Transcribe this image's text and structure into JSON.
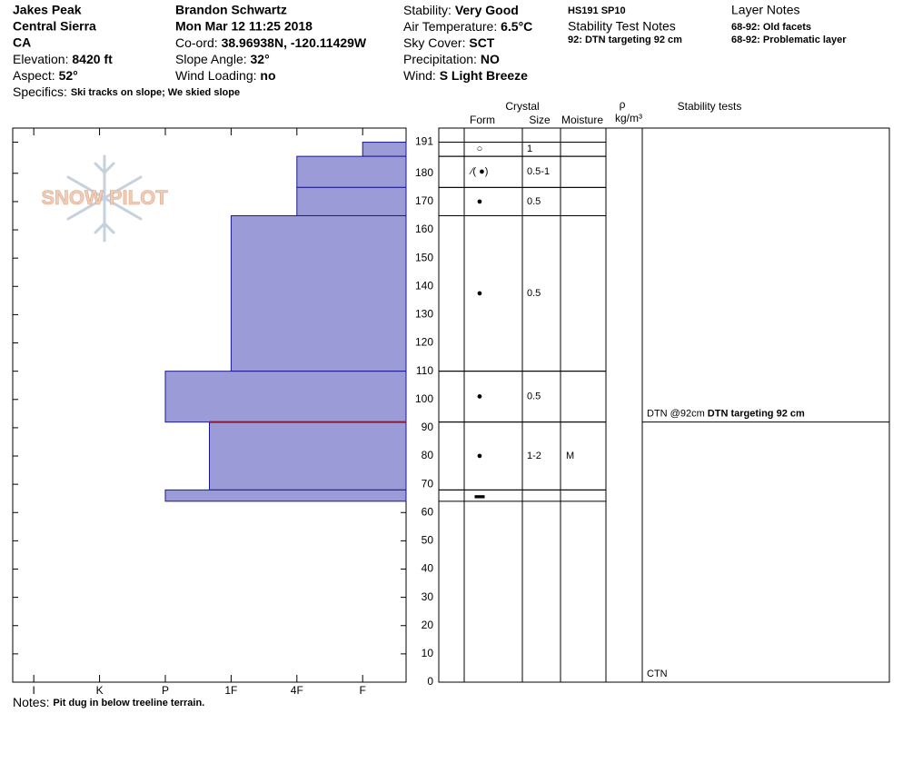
{
  "header": {
    "site": "Jakes Peak",
    "range": "Central Sierra",
    "state": "CA",
    "elevation_label": "Elevation:",
    "elevation": "8420 ft",
    "aspect_label": "Aspect:",
    "aspect": "52°",
    "specifics_label": "Specifics:",
    "specifics": "Ski tracks on slope; We skied slope",
    "observer": "Brandon Schwartz",
    "date": "Mon Mar 12 11:25 2018",
    "coord_label": "Co-ord:",
    "coord": "38.96938N, -120.11429W",
    "slope_label": "Slope Angle:",
    "slope": "32°",
    "wind_loading_label": "Wind Loading:",
    "wind_loading": "no",
    "stability_label": "Stability:",
    "stability": "Very Good",
    "air_temp_label": "Air Temperature:",
    "air_temp": "6.5°C",
    "sky_label": "Sky Cover:",
    "sky": "SCT",
    "precip_label": "Precipitation:",
    "precip": "NO",
    "wind_label": "Wind:",
    "wind": "S Light Breeze",
    "hs": "HS191 SP10",
    "stability_notes_title": "Stability Test Notes",
    "stability_notes": [
      "92: DTN targeting 92 cm"
    ],
    "layer_notes_title": "Layer Notes",
    "layer_notes": [
      "68-92: Old facets",
      "68-92: Problematic layer"
    ]
  },
  "logo": "SNOW PILOT",
  "chart_data": {
    "type": "hardness-profile",
    "ylim": [
      0,
      196
    ],
    "yticks": [
      0,
      10,
      20,
      30,
      40,
      50,
      60,
      70,
      80,
      90,
      100,
      110,
      120,
      130,
      140,
      150,
      160,
      170,
      180,
      191
    ],
    "xlim": [
      6.32,
      0.34
    ],
    "xticks": [
      {
        "value": 6,
        "label": "I"
      },
      {
        "value": 5,
        "label": "K"
      },
      {
        "value": 4,
        "label": "P"
      },
      {
        "value": 3,
        "label": "1F"
      },
      {
        "value": 2,
        "label": "4F"
      },
      {
        "value": 1,
        "label": "F"
      }
    ],
    "color": "#9b9bd7",
    "edge_color": "#1a1a8c",
    "test_color": "#8b1a3a",
    "layers": [
      {
        "top": 191,
        "bottom": 186,
        "hardness": 1,
        "form": "○",
        "size": "1"
      },
      {
        "top": 186,
        "bottom": 175,
        "hardness": 2,
        "form": "⁄( ●)",
        "size": "0.5-1"
      },
      {
        "top": 175,
        "bottom": 165,
        "hardness": 2,
        "form": "●",
        "size": "0.5"
      },
      {
        "top": 165,
        "bottom": 110,
        "hardness": 3,
        "form": "●",
        "size": "0.5"
      },
      {
        "top": 110,
        "bottom": 92,
        "hardness": 4,
        "form": "●",
        "size": "0.5"
      },
      {
        "top": 92,
        "bottom": 68,
        "hardness": 3.33,
        "form": "●",
        "size": "1-2",
        "moisture": "M"
      },
      {
        "top": 68,
        "bottom": 64,
        "hardness": 4,
        "form": "▬"
      }
    ],
    "tests": [
      {
        "depth": 92,
        "label": "DTN @92cm",
        "comment": "DTN targeting 92 cm"
      },
      {
        "depth": 0,
        "label": "CTN"
      }
    ]
  },
  "columns": {
    "crystal": "Crystal",
    "form": "Form",
    "size": "Size",
    "moisture": "Moisture",
    "density": "ρ",
    "density_unit": "kg/m³",
    "tests": "Stability tests"
  },
  "notes_label": "Notes:",
  "notes": "Pit dug in below treeline terrain."
}
